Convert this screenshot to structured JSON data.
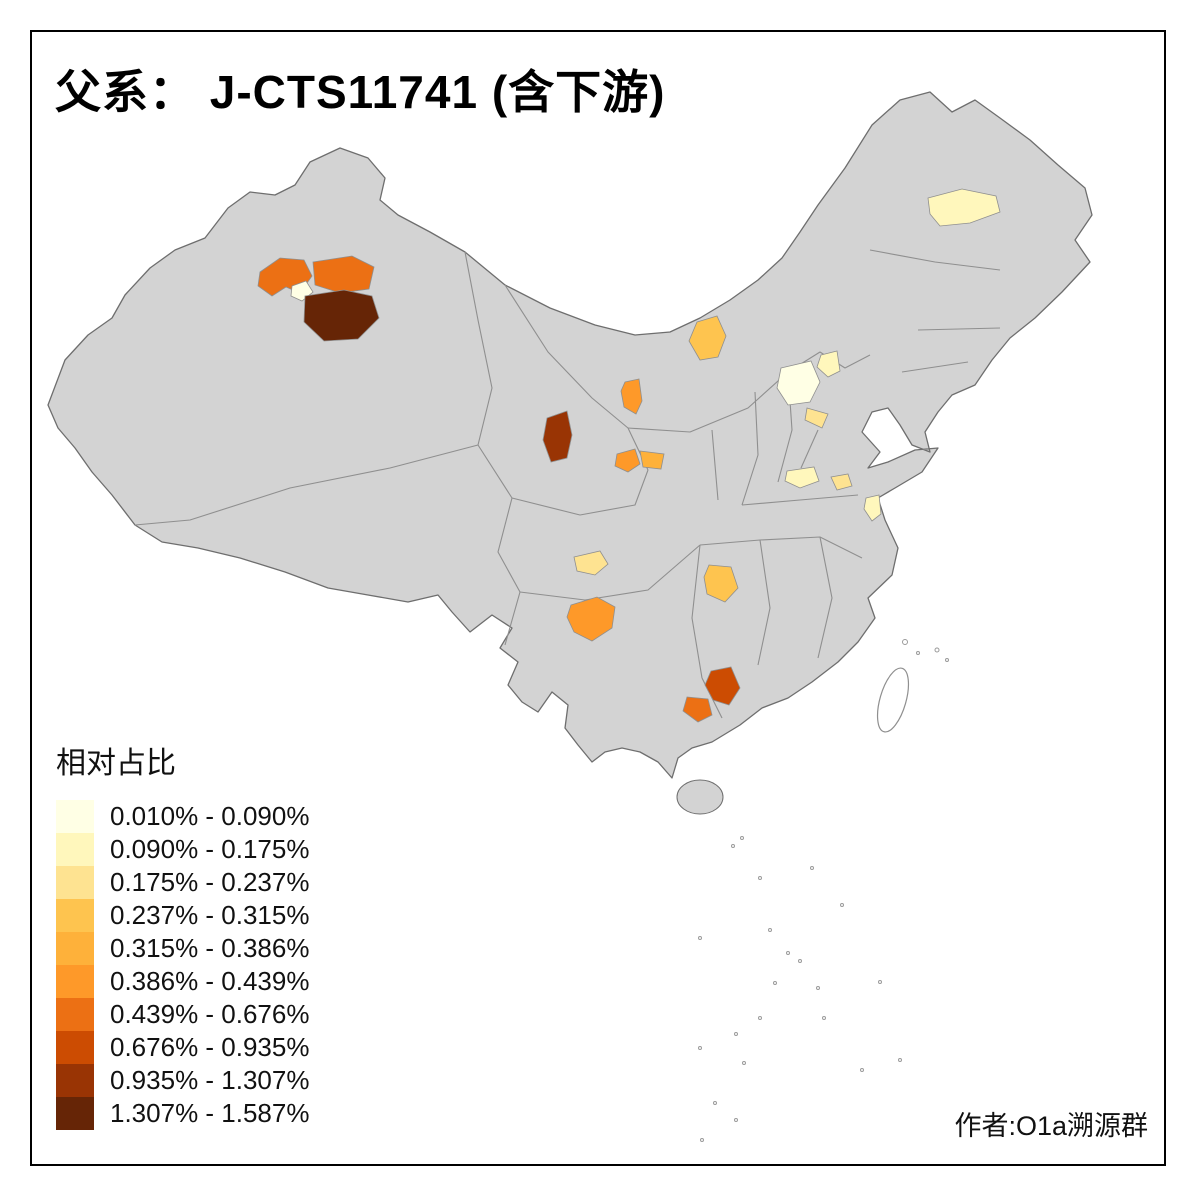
{
  "title": "父系： J-CTS11741 (含下游)",
  "credit": "作者:O1a溯源群",
  "legend": {
    "title": "相对占比"
  },
  "map_colors": {
    "land": "#d3d3d3",
    "border": "#8f8f8f",
    "outline": "#6e6e6e",
    "sea": "#ffffff"
  },
  "chart_data": {
    "type": "choropleth_map",
    "title": "父系： J-CTS11741 (含下游)",
    "legend_title": "相对占比",
    "legend_position": "bottom-left",
    "value_unit": "%",
    "classes": [
      {
        "label": "0.010% - 0.090%",
        "color": "#FFFFE5"
      },
      {
        "label": "0.090% - 0.175%",
        "color": "#FFF7BC"
      },
      {
        "label": "0.175% - 0.237%",
        "color": "#FEE391"
      },
      {
        "label": "0.237% - 0.315%",
        "color": "#FEC44F"
      },
      {
        "label": "0.315% - 0.386%",
        "color": "#FEB13A"
      },
      {
        "label": "0.386% - 0.439%",
        "color": "#FE9929"
      },
      {
        "label": "0.439% - 0.676%",
        "color": "#EC7014"
      },
      {
        "label": "0.676% - 0.935%",
        "color": "#CC4C02"
      },
      {
        "label": "0.935% - 1.307%",
        "color": "#993404"
      },
      {
        "label": "1.307% - 1.587%",
        "color": "#662506"
      }
    ],
    "regions": [
      {
        "id": "north-xinjiang-west",
        "class_index": 6
      },
      {
        "id": "north-xinjiang-cream",
        "class_index": 0
      },
      {
        "id": "north-xinjiang-east",
        "class_index": 6
      },
      {
        "id": "north-xinjiang-dark",
        "class_index": 9
      },
      {
        "id": "heilongjiang-patch",
        "class_index": 1
      },
      {
        "id": "inner-mongolia-patch",
        "class_index": 3
      },
      {
        "id": "ningxia-patch",
        "class_index": 5
      },
      {
        "id": "qinghai-patch",
        "class_index": 8
      },
      {
        "id": "gansu-west-patch",
        "class_index": 5
      },
      {
        "id": "gansu-east-patch",
        "class_index": 4
      },
      {
        "id": "hebei-patch",
        "class_index": 0
      },
      {
        "id": "beijing-patch",
        "class_index": 1
      },
      {
        "id": "shandong-west-patch",
        "class_index": 2
      },
      {
        "id": "henan-patch",
        "class_index": 1
      },
      {
        "id": "henan-east-patch",
        "class_index": 2
      },
      {
        "id": "jiangsu-patch",
        "class_index": 1
      },
      {
        "id": "sichuan-patch",
        "class_index": 2
      },
      {
        "id": "hunan-west-patch",
        "class_index": 3
      },
      {
        "id": "yunnan-north-patch",
        "class_index": 5
      },
      {
        "id": "guangxi-northeast-patch",
        "class_index": 7
      },
      {
        "id": "guangxi-central-patch",
        "class_index": 6
      }
    ]
  }
}
